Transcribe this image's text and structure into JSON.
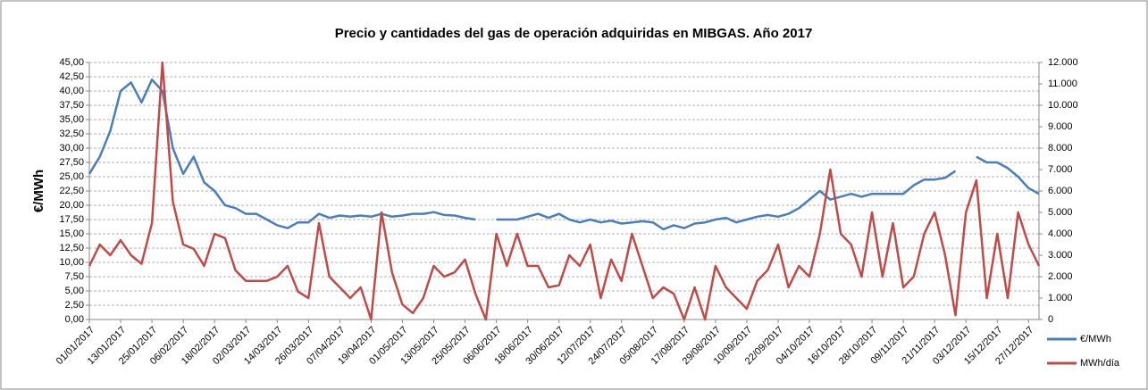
{
  "chart_data": {
    "type": "line",
    "title": "Precio y cantidades del gas de operación adquiridas en MIBGAS. Año 2017",
    "y_label": "€/MWh",
    "x": [
      "01/01/2017",
      "05/01/2017",
      "09/01/2017",
      "13/01/2017",
      "17/01/2017",
      "21/01/2017",
      "25/01/2017",
      "29/01/2017",
      "02/02/2017",
      "06/02/2017",
      "10/02/2017",
      "14/02/2017",
      "18/02/2017",
      "22/02/2017",
      "26/02/2017",
      "02/03/2017",
      "06/03/2017",
      "10/03/2017",
      "14/03/2017",
      "18/03/2017",
      "22/03/2017",
      "26/03/2017",
      "30/03/2017",
      "03/04/2017",
      "07/04/2017",
      "11/04/2017",
      "15/04/2017",
      "19/04/2017",
      "23/04/2017",
      "27/04/2017",
      "01/05/2017",
      "05/05/2017",
      "09/05/2017",
      "13/05/2017",
      "17/05/2017",
      "21/05/2017",
      "25/05/2017",
      "29/05/2017",
      "02/06/2017",
      "06/06/2017",
      "10/06/2017",
      "14/06/2017",
      "18/06/2017",
      "22/06/2017",
      "26/06/2017",
      "30/06/2017",
      "04/07/2017",
      "08/07/2017",
      "12/07/2017",
      "16/07/2017",
      "20/07/2017",
      "24/07/2017",
      "28/07/2017",
      "01/08/2017",
      "05/08/2017",
      "09/08/2017",
      "13/08/2017",
      "17/08/2017",
      "21/08/2017",
      "25/08/2017",
      "29/08/2017",
      "02/09/2017",
      "06/09/2017",
      "10/09/2017",
      "14/09/2017",
      "18/09/2017",
      "22/09/2017",
      "26/09/2017",
      "30/09/2017",
      "04/10/2017",
      "08/10/2017",
      "12/10/2017",
      "16/10/2017",
      "20/10/2017",
      "24/10/2017",
      "28/10/2017",
      "01/11/2017",
      "05/11/2017",
      "09/11/2017",
      "13/11/2017",
      "17/11/2017",
      "21/11/2017",
      "25/11/2017",
      "29/11/2017",
      "03/12/2017",
      "07/12/2017",
      "11/12/2017",
      "15/12/2017",
      "19/12/2017",
      "23/12/2017",
      "27/12/2017",
      "31/12/2017"
    ],
    "series": [
      {
        "name": "€/MWh",
        "color": "#4a7ebb",
        "values": [
          25.5,
          28.5,
          33,
          40,
          41.5,
          38,
          42,
          40,
          30,
          25.5,
          28.5,
          24,
          22.5,
          20,
          19.5,
          18.5,
          18.5,
          17.5,
          16.5,
          16,
          17,
          17,
          18.5,
          17.8,
          18.2,
          18,
          18.2,
          18,
          18.5,
          18,
          18.2,
          18.5,
          18.5,
          18.8,
          18.3,
          18.2,
          17.8,
          17.5,
          null,
          17.5,
          17.5,
          17.5,
          18,
          18.5,
          17.8,
          18.5,
          17.5,
          17,
          17.5,
          17,
          17.3,
          16.8,
          17,
          17.2,
          17,
          15.8,
          16.5,
          16,
          16.8,
          17,
          17.5,
          17.8,
          17,
          17.5,
          18,
          18.3,
          18,
          18.5,
          19.5,
          21,
          22.5,
          21,
          21.5,
          22,
          21.5,
          22,
          22,
          22,
          22,
          23.5,
          24.5,
          24.5,
          24.8,
          26,
          null,
          28.5,
          27.5,
          27.5,
          26.5,
          25,
          23,
          22
        ]
      },
      {
        "name": "MWh/día",
        "color": "#be4b48",
        "axis": "y2",
        "values": [
          2500,
          3500,
          3000,
          3700,
          3000,
          2600,
          4500,
          12000,
          5500,
          3500,
          3300,
          2500,
          4000,
          3800,
          2300,
          1800,
          1800,
          1800,
          2000,
          2500,
          1300,
          1000,
          4500,
          2000,
          1500,
          1000,
          1500,
          0,
          5000,
          2200,
          700,
          300,
          1000,
          2500,
          2000,
          2200,
          2800,
          1200,
          0,
          4000,
          2500,
          4000,
          2500,
          2500,
          1500,
          1600,
          3000,
          2500,
          3500,
          1000,
          2800,
          1800,
          4000,
          2500,
          1000,
          1500,
          1200,
          0,
          1500,
          0,
          2500,
          1500,
          1000,
          500,
          1800,
          2300,
          3500,
          1500,
          2500,
          2000,
          4000,
          7000,
          4000,
          3500,
          2000,
          5000,
          2000,
          4500,
          1500,
          2000,
          4000,
          5000,
          3000,
          200,
          5000,
          6500,
          1000,
          4000,
          1000,
          5000,
          3500,
          2500
        ]
      }
    ],
    "xlim": [
      "01/01/2017",
      "31/12/2017"
    ],
    "xticks": [
      "01/01/2017",
      "13/01/2017",
      "25/01/2017",
      "06/02/2017",
      "18/02/2017",
      "02/03/2017",
      "14/03/2017",
      "26/03/2017",
      "07/04/2017",
      "19/04/2017",
      "01/05/2017",
      "13/05/2017",
      "25/05/2017",
      "06/06/2017",
      "18/06/2017",
      "30/06/2017",
      "12/07/2017",
      "24/07/2017",
      "05/08/2017",
      "17/08/2017",
      "29/08/2017",
      "10/09/2017",
      "22/09/2017",
      "04/10/2017",
      "16/10/2017",
      "28/10/2017",
      "09/11/2017",
      "21/11/2017",
      "03/12/2017",
      "15/12/2017",
      "27/12/2017"
    ],
    "ylim": [
      0,
      45
    ],
    "yticks": [
      {
        "value": 0,
        "label": "0,00"
      },
      {
        "value": 2.5,
        "label": "2,50"
      },
      {
        "value": 5,
        "label": "5,00"
      },
      {
        "value": 7.5,
        "label": "7,50"
      },
      {
        "value": 10,
        "label": "10,00"
      },
      {
        "value": 12.5,
        "label": "12,50"
      },
      {
        "value": 15,
        "label": "15,00"
      },
      {
        "value": 17.5,
        "label": "17,50"
      },
      {
        "value": 20,
        "label": "20,00"
      },
      {
        "value": 22.5,
        "label": "22,50"
      },
      {
        "value": 25,
        "label": "25,00"
      },
      {
        "value": 27.5,
        "label": "27,50"
      },
      {
        "value": 30,
        "label": "30,00"
      },
      {
        "value": 32.5,
        "label": "32,50"
      },
      {
        "value": 35,
        "label": "35,00"
      },
      {
        "value": 37.5,
        "label": "37,50"
      },
      {
        "value": 40,
        "label": "40,00"
      },
      {
        "value": 42.5,
        "label": "42,50"
      },
      {
        "value": 45,
        "label": "45,00"
      }
    ],
    "y2lim": [
      0,
      12000
    ],
    "y2ticks": [
      0,
      {
        "value": 1000,
        "label": "1.000"
      },
      {
        "value": 2000,
        "label": "2.000"
      },
      {
        "value": 3000,
        "label": "3.000"
      },
      {
        "value": 4000,
        "label": "4.000"
      },
      {
        "value": 5000,
        "label": "5.000"
      },
      {
        "value": 6000,
        "label": "6.000"
      },
      {
        "value": 7000,
        "label": "7.000"
      },
      {
        "value": 8000,
        "label": "8.000"
      },
      {
        "value": 9000,
        "label": "9.000"
      },
      {
        "value": 10000,
        "label": "10.000"
      },
      {
        "value": 11000,
        "label": "11.000"
      },
      {
        "value": 12000,
        "label": "12.000"
      }
    ],
    "grid": true,
    "legend": "right"
  }
}
